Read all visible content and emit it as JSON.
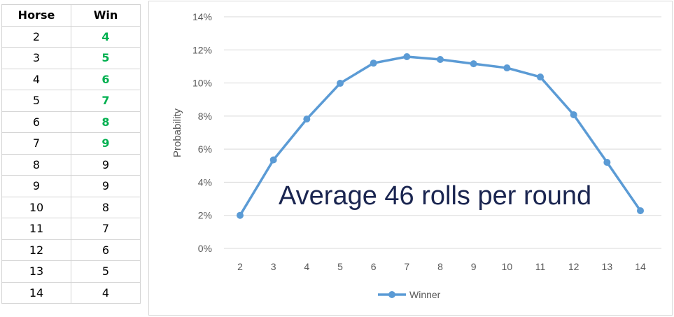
{
  "table": {
    "headers": [
      "Horse",
      "Win"
    ],
    "rows": [
      [
        "2",
        "4"
      ],
      [
        "3",
        "5"
      ],
      [
        "4",
        "6"
      ],
      [
        "5",
        "7"
      ],
      [
        "6",
        "8"
      ],
      [
        "7",
        "9"
      ],
      [
        "8",
        "9"
      ],
      [
        "9",
        "9"
      ],
      [
        "10",
        "8"
      ],
      [
        "11",
        "7"
      ],
      [
        "12",
        "6"
      ],
      [
        "13",
        "5"
      ],
      [
        "14",
        "4"
      ]
    ],
    "highlighted_rows": 6,
    "highlight_color": "#00b050"
  },
  "chart_data": {
    "type": "line",
    "x": [
      2,
      3,
      4,
      5,
      6,
      7,
      8,
      9,
      10,
      11,
      12,
      13,
      14
    ],
    "series": [
      {
        "name": "Winner",
        "color": "#5b9bd5",
        "values": [
          2.0,
          5.35,
          7.82,
          9.98,
          11.2,
          11.59,
          11.42,
          11.16,
          10.91,
          10.36,
          8.08,
          5.2,
          2.28
        ]
      }
    ],
    "ylabel": "Probability",
    "xlabel": "",
    "ylim": [
      0,
      14
    ],
    "yticks": [
      "0%",
      "2%",
      "4%",
      "6%",
      "8%",
      "10%",
      "12%",
      "14%"
    ],
    "xticks": [
      "2",
      "3",
      "4",
      "5",
      "6",
      "7",
      "8",
      "9",
      "10",
      "11",
      "12",
      "13",
      "14"
    ],
    "grid": true,
    "legend": "bottom",
    "annotation": "Average 46 rolls per round"
  }
}
